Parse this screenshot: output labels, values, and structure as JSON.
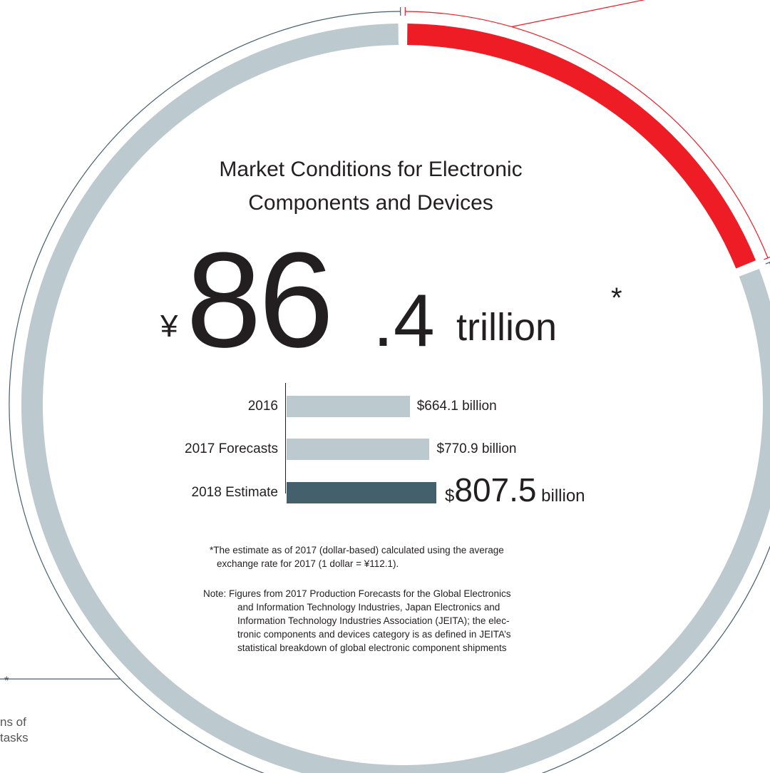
{
  "chart_data": [
    {
      "type": "pie",
      "style": "donut",
      "slices": [
        {
          "label": "",
          "share": 0.19,
          "color": "#ee1c25"
        },
        {
          "label": "",
          "share": 0.81,
          "color": "#bcc9cf"
        }
      ]
    },
    {
      "type": "bar",
      "orientation": "horizontal",
      "categories": [
        "2016",
        "2017 Forecasts",
        "2018 Estimate"
      ],
      "values": [
        664.1,
        770.9,
        807.5
      ],
      "value_labels": [
        "$664.1 billion",
        "$770.9 billion",
        "$807.5 billion"
      ],
      "highlight": "2018 Estimate",
      "colors": {
        "default": "#bcc9cf",
        "highlight": "#45606d"
      },
      "unit": "billion",
      "xlim": [
        0,
        807.5
      ]
    }
  ],
  "header": {
    "title_line1": "Market Conditions for Electronic",
    "title_line2": "Components and Devices"
  },
  "headline": {
    "currency": "¥",
    "integer": "86",
    "decimal": ".4",
    "unit": "trillion",
    "asterisk": "*"
  },
  "bars_text": {
    "big_currency": "$",
    "big_value": "807.5",
    "big_unit": "billion"
  },
  "notes": {
    "footnote_line1": "*The estimate as of 2017 (dollar-based) calculated using the average",
    "footnote_line2": "exchange rate for 2017 (1 dollar = ¥112.1).",
    "note_line1": "Note: Figures from 2017 Production Forecasts for the Global Electronics",
    "note_line2": "and Information Technology Industries, Japan Electronics and",
    "note_line3": "Information Technology Industries Association (JEITA); the elec-",
    "note_line4": "tronic components and devices category is as defined in JEITA’s",
    "note_line5": "statistical breakdown of global electronic component shipments"
  },
  "cropped_text": {
    "asterisk": "*",
    "line1": "ns of",
    "line2": "tasks"
  },
  "colors": {
    "accent_red": "#ee1c25",
    "ring_gray": "#bcc9cf",
    "bar_gray": "#bcc9cf",
    "bar_dark": "#45606d",
    "outline": "#45606d"
  }
}
